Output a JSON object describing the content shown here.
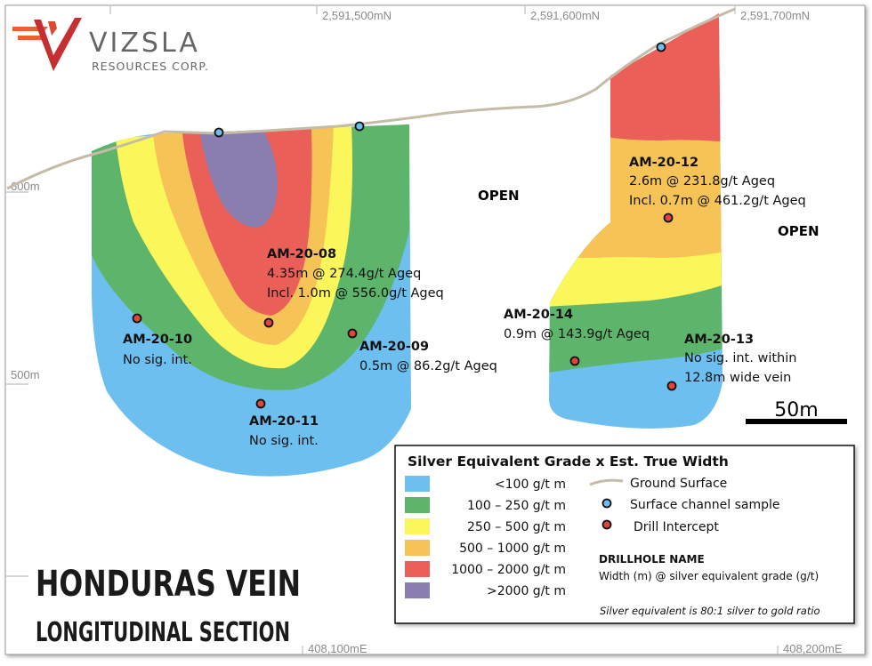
{
  "logo": {
    "name": "VIZSLA",
    "subtitle": "RESOURCES CORP."
  },
  "title": {
    "line1": "HONDURAS VEIN",
    "line2": "LONGITUDINAL SECTION"
  },
  "grid_labels": {
    "north": [
      "2,591,500mN",
      "2,591,600mN",
      "2,591,700mN"
    ],
    "elevation": [
      "600m",
      "500m"
    ],
    "east": [
      "408,100mE",
      "408,200mE"
    ]
  },
  "open_labels": [
    "OPEN",
    "OPEN"
  ],
  "drillholes": [
    {
      "id": "ah08",
      "name": "AM-20-08",
      "lines": [
        "4.35m @ 274.4g/t Ageq",
        "Incl. 1.0m @ 556.0g/t Ageq"
      ]
    },
    {
      "id": "ah09",
      "name": "AM-20-09",
      "lines": [
        "0.5m @ 86.2g/t Ageq"
      ]
    },
    {
      "id": "ah10",
      "name": "AM-20-10",
      "lines": [
        "No sig. int."
      ]
    },
    {
      "id": "ah11",
      "name": "AM-20-11",
      "lines": [
        "No sig. int."
      ]
    },
    {
      "id": "ah12",
      "name": "AM-20-12",
      "lines": [
        "2.6m @ 231.8g/t Ageq",
        "Incl. 0.7m @ 461.2g/t Ageq"
      ]
    },
    {
      "id": "ah13",
      "name": "AM-20-13",
      "lines": [
        "No sig. int. within",
        "12.8m wide vein"
      ]
    },
    {
      "id": "ah14",
      "name": "AM-20-14",
      "lines": [
        "0.9m @ 143.9g/t Ageq"
      ]
    }
  ],
  "scale_bar": {
    "label": "50m"
  },
  "legend": {
    "title": "Silver Equivalent Grade x Est. True Width",
    "grades": [
      {
        "label": "<100 g/t m",
        "color": "#6cbfee"
      },
      {
        "label": "100 – 250 g/t m",
        "color": "#5cb56a"
      },
      {
        "label": "250 – 500 g/t m",
        "color": "#fbf65a"
      },
      {
        "label": "500 – 1000 g/t m",
        "color": "#f6c456"
      },
      {
        "label": "1000 – 2000 g/t m",
        "color": "#ea5f58"
      },
      {
        "label": ">2000 g/t m",
        "color": "#8a7db0"
      }
    ],
    "symbols": {
      "ground_surface": "Ground Surface",
      "channel_sample": "Surface channel sample",
      "drill_intercept": "Drill Intercept"
    },
    "drillhole_name_label": "DRILLHOLE NAME",
    "drillhole_format": "Width (m) @ silver equivalent grade (g/t)",
    "note": "Silver equivalent is 80:1 silver to gold ratio"
  },
  "colors": {
    "ground_line": "#c5bca8",
    "channel_sample": "#6cbfee",
    "drill_intercept": "#e0443a",
    "logo_orange": "#e8632b",
    "logo_red": "#c62f31"
  }
}
